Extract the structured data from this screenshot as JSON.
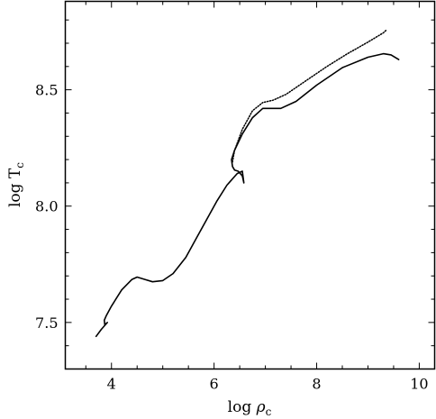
{
  "chart_data": {
    "type": "line",
    "title": "",
    "xlabel": {
      "main": "log ",
      "symbol": "ρ",
      "sub": "c"
    },
    "ylabel": {
      "main": "log T",
      "sub": "c"
    },
    "xlim": [
      3.1,
      10.3
    ],
    "ylim": [
      7.3,
      8.88
    ],
    "x_ticks": [
      {
        "value": 4,
        "label": "4"
      },
      {
        "value": 6,
        "label": "6"
      },
      {
        "value": 8,
        "label": "8"
      },
      {
        "value": 10,
        "label": "10"
      }
    ],
    "y_ticks": [
      {
        "value": 7.5,
        "label": "7.5"
      },
      {
        "value": 8.0,
        "label": "8.0"
      },
      {
        "value": 8.5,
        "label": "8.5"
      }
    ],
    "grid": false,
    "series": [
      {
        "style": "solid",
        "points": [
          [
            3.7,
            7.44
          ],
          [
            3.8,
            7.47
          ],
          [
            3.92,
            7.5
          ],
          [
            3.87,
            7.49
          ],
          [
            3.86,
            7.51
          ],
          [
            3.9,
            7.53
          ],
          [
            4.0,
            7.57
          ],
          [
            4.2,
            7.64
          ],
          [
            4.4,
            7.685
          ],
          [
            4.5,
            7.695
          ],
          [
            4.65,
            7.685
          ],
          [
            4.8,
            7.675
          ],
          [
            5.0,
            7.68
          ],
          [
            5.2,
            7.71
          ],
          [
            5.45,
            7.78
          ],
          [
            5.65,
            7.86
          ],
          [
            5.85,
            7.94
          ],
          [
            6.05,
            8.02
          ],
          [
            6.25,
            8.09
          ],
          [
            6.45,
            8.14
          ],
          [
            6.55,
            8.15
          ],
          [
            6.58,
            8.1
          ],
          [
            6.55,
            8.13
          ],
          [
            6.47,
            8.15
          ],
          [
            6.4,
            8.155
          ],
          [
            6.36,
            8.17
          ],
          [
            6.34,
            8.2
          ],
          [
            6.4,
            8.24
          ],
          [
            6.55,
            8.31
          ],
          [
            6.75,
            8.38
          ],
          [
            6.95,
            8.42
          ],
          [
            7.1,
            8.42
          ],
          [
            7.3,
            8.42
          ],
          [
            7.6,
            8.45
          ],
          [
            8.0,
            8.52
          ],
          [
            8.5,
            8.595
          ],
          [
            9.0,
            8.64
          ],
          [
            9.3,
            8.655
          ],
          [
            9.45,
            8.65
          ],
          [
            9.6,
            8.63
          ]
        ]
      },
      {
        "style": "dotted",
        "points": [
          [
            6.36,
            8.19
          ],
          [
            6.4,
            8.24
          ],
          [
            6.55,
            8.33
          ],
          [
            6.75,
            8.41
          ],
          [
            6.95,
            8.445
          ],
          [
            7.15,
            8.455
          ],
          [
            7.4,
            8.48
          ],
          [
            7.8,
            8.54
          ],
          [
            8.2,
            8.6
          ],
          [
            8.6,
            8.655
          ],
          [
            9.0,
            8.705
          ],
          [
            9.3,
            8.745
          ],
          [
            9.35,
            8.755
          ]
        ]
      }
    ]
  }
}
